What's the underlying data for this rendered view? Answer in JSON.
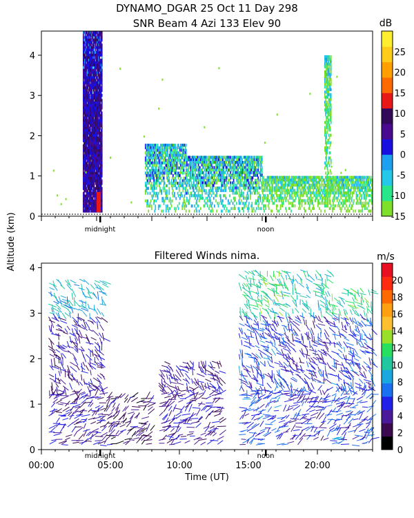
{
  "header": {
    "line1": "DYNAMO_DGAR  25 Oct 11 Day 298",
    "line2": "SNR Beam 4 Azi 133 Elev 90"
  },
  "ylabel": "Altitude (km)",
  "xlabel": "Time (UT)",
  "chart_data": [
    {
      "type": "heatmap",
      "title": "SNR Beam 4 Azi 133 Elev 90",
      "xlim": [
        0,
        24
      ],
      "ylim": [
        0,
        4.6
      ],
      "yticks": [
        "0",
        "1",
        "2",
        "3",
        "4"
      ],
      "day_markers": [
        {
          "label": "midnight",
          "x": 4.25
        },
        {
          "label": "noon",
          "x": 16.25
        }
      ],
      "colorbar": {
        "unit": "dB",
        "min": -15,
        "max": 30,
        "ticks": [
          "25",
          "20",
          "15",
          "10",
          "5",
          "0",
          "-5",
          "-10",
          "-15"
        ],
        "tick_values": [
          25,
          20,
          15,
          10,
          5,
          0,
          -5,
          -10,
          -15
        ],
        "colors": [
          "#7ee02a",
          "#28e68a",
          "#24c8e8",
          "#1ea0f0",
          "#1810e0",
          "#4a0a90",
          "#330a5a",
          "#e81818",
          "#ff6a00",
          "#ffa000",
          "#ffcc1a",
          "#ffee30"
        ]
      },
      "features": [
        {
          "x0": 3.0,
          "x1": 4.4,
          "y0": 0.1,
          "y1": 4.6,
          "level": "high"
        },
        {
          "x0": 7.5,
          "x1": 10.5,
          "y0": 0.1,
          "y1": 1.8,
          "level": "mid"
        },
        {
          "x0": 10.5,
          "x1": 16.0,
          "y0": 0.1,
          "y1": 1.5,
          "level": "mid"
        },
        {
          "x0": 16.0,
          "x1": 24.0,
          "y0": 0.1,
          "y1": 1.0,
          "level": "low"
        },
        {
          "x0": 20.5,
          "x1": 21.0,
          "y0": 0.1,
          "y1": 4.0,
          "level": "low"
        }
      ]
    },
    {
      "type": "scatter",
      "title": "Filtered Winds nima.",
      "xlim": [
        0,
        24
      ],
      "ylim": [
        0,
        4.1
      ],
      "yticks": [
        "0",
        "1",
        "2",
        "3",
        "4"
      ],
      "xticks": [
        "00:00",
        "05:00",
        "10:00",
        "15:00",
        "20:00"
      ],
      "xtick_values": [
        0,
        5,
        10,
        15,
        20
      ],
      "day_markers": [
        {
          "label": "midnight",
          "x": 4.25
        },
        {
          "label": "noon",
          "x": 16.25
        }
      ],
      "colorbar": {
        "unit": "m/s",
        "min": 0,
        "max": 22,
        "ticks": [
          "20",
          "18",
          "16",
          "14",
          "12",
          "10",
          "8",
          "6",
          "4",
          "2",
          "0"
        ],
        "tick_values": [
          20,
          18,
          16,
          14,
          12,
          10,
          8,
          6,
          4,
          2,
          0
        ],
        "colors": [
          "#000000",
          "#3c0a50",
          "#4a1a9a",
          "#2020e8",
          "#1a70f0",
          "#1aa8e0",
          "#20c8a0",
          "#28e060",
          "#9ae02a",
          "#ffc030",
          "#ffa010",
          "#ff6a00",
          "#ff2a10",
          "#e81020"
        ]
      },
      "wind_regions": [
        {
          "x0": 0.5,
          "x1": 4.5,
          "y0": 0.1,
          "y1": 3.8,
          "speed": 4
        },
        {
          "x0": 4.5,
          "x1": 8.0,
          "y0": 0.1,
          "y1": 1.2,
          "speed": 3
        },
        {
          "x0": 8.5,
          "x1": 13.0,
          "y0": 0.1,
          "y1": 2.0,
          "speed": 4
        },
        {
          "x0": 14.3,
          "x1": 17.5,
          "y0": 0.1,
          "y1": 4.0,
          "speed": 6
        },
        {
          "x0": 17.5,
          "x1": 21.0,
          "y0": 0.1,
          "y1": 4.0,
          "speed": 5
        },
        {
          "x0": 21.0,
          "x1": 24.0,
          "y0": 0.1,
          "y1": 3.6,
          "speed": 6
        }
      ]
    }
  ]
}
